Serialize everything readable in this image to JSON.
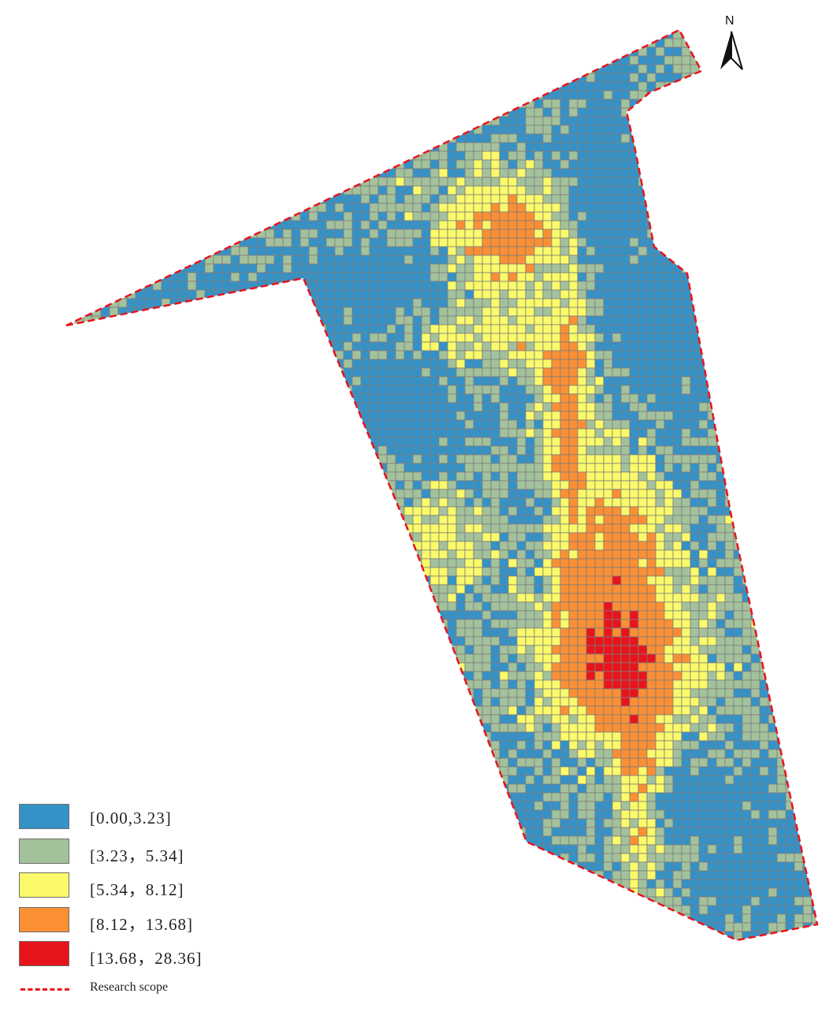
{
  "map": {
    "legend": {
      "classes": [
        {
          "label": "[0.00,3.23]",
          "color": "#3592c7"
        },
        {
          "label": "[3.23，5.34]",
          "color": "#a3c29c"
        },
        {
          "label": "[5.34，8.12]",
          "color": "#fafa6a"
        },
        {
          "label": "[8.12，13.68]",
          "color": "#fb8f34"
        },
        {
          "label": "[13.68，28.36]",
          "color": "#e8141c"
        }
      ],
      "boundary": {
        "label": "Research scope",
        "color": "#e8141c"
      }
    },
    "north_arrow": {
      "letter": "N",
      "icon": "north-arrow-icon"
    },
    "grid_line_color": "#7d7d7d"
  }
}
